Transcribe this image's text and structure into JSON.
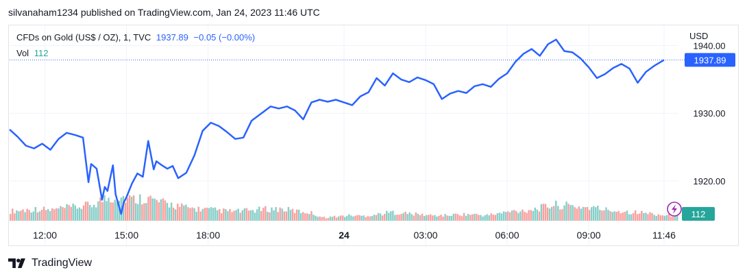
{
  "publish_line": "silvanaham1234 published on TradingView.com, Jan 24, 2023 11:46 UTC",
  "legend": {
    "symbol": "CFDs on Gold (US$ / OZ), 1, TVC",
    "price": "1937.89",
    "change": "−0.05 (−0.00%)",
    "vol_label": "Vol",
    "vol_value": "112"
  },
  "footer": {
    "brand": "TradingView"
  },
  "colors": {
    "price_line": "#2962ff",
    "vol_up": "#26a69a",
    "vol_down": "#ef5350",
    "grid": "#f0f3fa",
    "vol_badge": "#26a69a",
    "alert_icon": "#9c27b0"
  },
  "chart_data": {
    "type": "line",
    "y_axis_unit": "USD",
    "ylim": [
      1914,
      1943
    ],
    "y_ticks": [
      1920,
      1930,
      1940
    ],
    "y_tick_labels": [
      "1920.00",
      "1930.00",
      "1940.00"
    ],
    "x_ticks": [
      {
        "label": "12:00",
        "t": 0,
        "bold": false
      },
      {
        "label": "15:00",
        "t": 3,
        "bold": false
      },
      {
        "label": "18:00",
        "t": 6,
        "bold": false
      },
      {
        "label": "24",
        "t": 11,
        "bold": true
      },
      {
        "label": "03:00",
        "t": 14,
        "bold": false
      },
      {
        "label": "06:00",
        "t": 17,
        "bold": false
      },
      {
        "label": "09:00",
        "t": 20,
        "bold": false
      },
      {
        "label": "11:46",
        "t": 22.77,
        "bold": false
      }
    ],
    "x_unit": "hours since Jan 23 12:00",
    "xlim": [
      -1.3,
      23.3
    ],
    "current_price_label": "1937.89",
    "current_volume_label": "112",
    "series": [
      {
        "name": "CFDs on Gold (US$ / OZ), 1, TVC",
        "x": [
          -1.3,
          -1.0,
          -0.7,
          -0.4,
          -0.1,
          0.2,
          0.5,
          0.8,
          1.1,
          1.4,
          1.6,
          1.7,
          1.9,
          2.1,
          2.2,
          2.3,
          2.5,
          2.6,
          2.8,
          2.9,
          3.0,
          3.2,
          3.4,
          3.6,
          3.8,
          4.0,
          4.1,
          4.3,
          4.5,
          4.7,
          4.9,
          5.2,
          5.5,
          5.8,
          6.1,
          6.4,
          6.7,
          7.0,
          7.3,
          7.6,
          8.0,
          8.3,
          8.6,
          8.9,
          9.2,
          9.5,
          9.8,
          10.1,
          10.4,
          10.7,
          11.0,
          11.3,
          11.6,
          11.9,
          12.2,
          12.5,
          12.8,
          13.1,
          13.4,
          13.7,
          14.0,
          14.3,
          14.6,
          14.9,
          15.2,
          15.5,
          15.8,
          16.1,
          16.4,
          16.7,
          17.0,
          17.3,
          17.6,
          17.9,
          18.2,
          18.5,
          18.8,
          19.1,
          19.4,
          19.7,
          20.0,
          20.3,
          20.6,
          20.9,
          21.2,
          21.5,
          21.8,
          22.1,
          22.4,
          22.77
        ],
        "y": [
          1927.6,
          1926.5,
          1925.2,
          1924.8,
          1925.5,
          1924.6,
          1926.2,
          1927.1,
          1926.8,
          1926.4,
          1919.8,
          1922.5,
          1921.8,
          1917.2,
          1919.1,
          1918.5,
          1922.3,
          1918.0,
          1915.1,
          1916.8,
          1917.6,
          1919.6,
          1921.1,
          1920.6,
          1925.9,
          1921.7,
          1922.9,
          1922.3,
          1921.8,
          1922.2,
          1920.4,
          1921.2,
          1923.8,
          1927.4,
          1928.6,
          1928.1,
          1927.2,
          1926.2,
          1926.4,
          1928.9,
          1930.1,
          1931.0,
          1930.7,
          1931.0,
          1930.4,
          1929.1,
          1931.6,
          1932.0,
          1931.7,
          1932.0,
          1931.6,
          1931.2,
          1932.5,
          1933.1,
          1935.2,
          1934.1,
          1935.9,
          1935.0,
          1934.6,
          1935.3,
          1934.9,
          1934.3,
          1932.1,
          1932.9,
          1933.3,
          1933.0,
          1934.0,
          1934.3,
          1933.9,
          1935.1,
          1935.9,
          1937.6,
          1938.8,
          1939.5,
          1938.5,
          1940.2,
          1940.9,
          1939.2,
          1939.0,
          1938.1,
          1936.8,
          1935.2,
          1935.8,
          1936.7,
          1937.3,
          1936.6,
          1934.5,
          1936.1,
          1937.0,
          1937.89
        ]
      }
    ],
    "volume": {
      "max_scale": 60,
      "x": [
        -1.3,
        -0.8,
        -0.3,
        0.2,
        0.7,
        1.2,
        1.7,
        2.2,
        2.7,
        3.2,
        3.7,
        4.2,
        4.7,
        5.2,
        5.7,
        6.2,
        6.7,
        7.2,
        7.7,
        8.2,
        8.7,
        9.2,
        9.7,
        10.2,
        10.7,
        11.2,
        11.7,
        12.2,
        12.7,
        13.2,
        13.7,
        14.2,
        14.7,
        15.2,
        15.7,
        16.2,
        16.7,
        17.2,
        17.7,
        18.2,
        18.7,
        19.2,
        19.7,
        20.2,
        20.7,
        21.2,
        21.7,
        22.2,
        22.77
      ],
      "v": [
        18,
        20,
        22,
        20,
        24,
        26,
        30,
        42,
        46,
        40,
        44,
        34,
        30,
        24,
        22,
        20,
        18,
        18,
        20,
        22,
        22,
        18,
        16,
        6,
        8,
        10,
        9,
        12,
        16,
        14,
        12,
        10,
        10,
        12,
        12,
        10,
        14,
        18,
        20,
        24,
        30,
        28,
        26,
        24,
        20,
        18,
        16,
        14,
        10
      ],
      "up": [
        1,
        0,
        1,
        1,
        0,
        1,
        0,
        0,
        1,
        0,
        1,
        0,
        1,
        1,
        0,
        1,
        1,
        0,
        1,
        0,
        1,
        1,
        0,
        1,
        0,
        1,
        1,
        0,
        1,
        0,
        1,
        1,
        0,
        1,
        0,
        1,
        0,
        1,
        0,
        1,
        0,
        1,
        1,
        0,
        1,
        0,
        1,
        1,
        1
      ]
    }
  }
}
